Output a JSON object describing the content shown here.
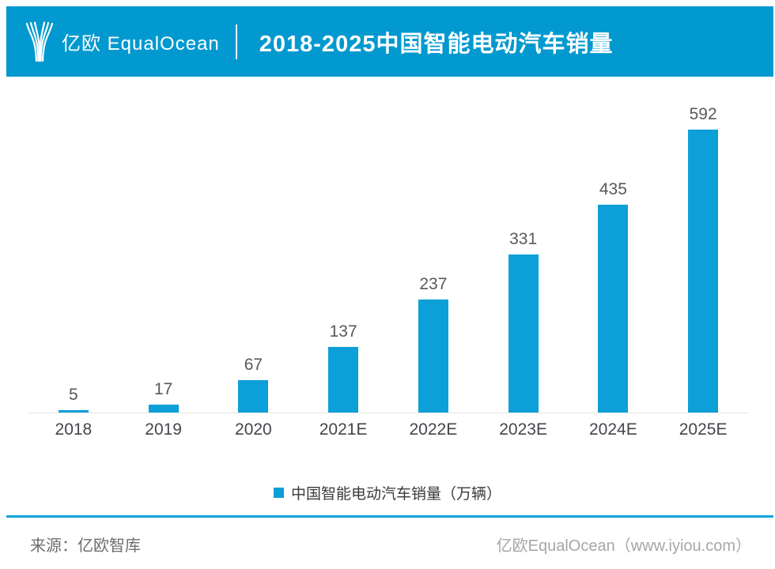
{
  "header": {
    "logo_text": "亿欧 EqualOcean",
    "title": "2018-2025中国智能电动汽车销量"
  },
  "chart_data": {
    "type": "bar",
    "categories": [
      "2018",
      "2019",
      "2020",
      "2021E",
      "2022E",
      "2023E",
      "2024E",
      "2025E"
    ],
    "values": [
      5,
      17,
      67,
      137,
      237,
      331,
      435,
      592
    ],
    "title": "2018-2025中国智能电动汽车销量",
    "xlabel": "",
    "ylabel": "",
    "ylim": [
      0,
      650
    ],
    "grid": false,
    "data_labels": true,
    "bar_color": "#0c9fd8",
    "legend": [
      "中国智能电动汽车销量（万辆）"
    ],
    "legend_position": "bottom"
  },
  "legend": {
    "label": "中国智能电动汽车销量（万辆）",
    "swatch_color": "#0c9fd8"
  },
  "footer": {
    "source": "来源：亿欧智库",
    "site": "亿欧EqualOcean（www.iyiou.com）"
  },
  "colors": {
    "band_background": "#0199cf",
    "bar": "#0c9fd8",
    "footer_rule": "#0da2d9",
    "axis_line": "#e3e3e3",
    "value_label": "#595959",
    "tick_label": "#43464b"
  }
}
